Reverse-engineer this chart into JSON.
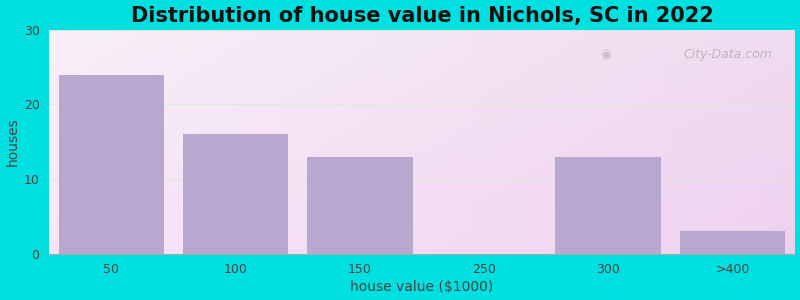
{
  "title": "Distribution of house value in Nichols, SC in 2022",
  "xlabel": "house value ($1000)",
  "ylabel": "houses",
  "categories": [
    "50",
    "100",
    "150",
    "250",
    "300",
    ">400"
  ],
  "values": [
    24,
    16,
    13,
    0,
    13,
    3
  ],
  "bar_color": "#b8a8d0",
  "ylim": [
    0,
    30
  ],
  "yticks": [
    0,
    10,
    20,
    30
  ],
  "bg_outer": "#00e0e0",
  "bg_top_left": "#d6f0dc",
  "bg_bottom_right": "#f8f8ff",
  "grid_color": "#e0e8e0",
  "title_fontsize": 15,
  "axis_fontsize": 10,
  "tick_fontsize": 9,
  "watermark": "City-Data.com",
  "bar_positions": [
    0,
    1,
    2,
    3,
    4,
    5
  ],
  "bar_width": 0.85
}
